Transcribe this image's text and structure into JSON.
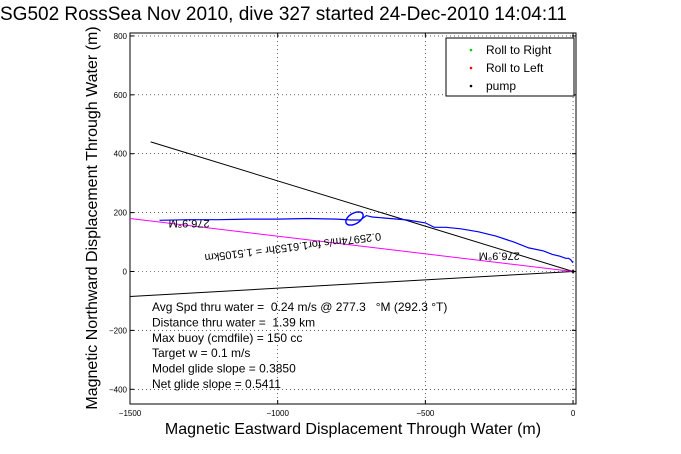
{
  "chart_data": {
    "type": "line",
    "title": "SG502 RossSea Nov 2010, dive 327 started 24-Dec-2010 14:04:11",
    "xlabel": "Magnetic Eastward Displacement Through Water (m)",
    "ylabel": "Magnetic Northward Displacement Through Water (m)",
    "xlim": [
      -1500,
      10
    ],
    "ylim": [
      -450,
      810
    ],
    "xticks": [
      -1500,
      -1000,
      -500,
      0
    ],
    "xtick_labels": [
      "−1500",
      "−1000",
      "−500",
      "0"
    ],
    "yticks": [
      -400,
      -200,
      0,
      200,
      400,
      600,
      800
    ],
    "ytick_labels": [
      "−400",
      "−200",
      "0",
      "200",
      "400",
      "600",
      "800"
    ],
    "grid": true,
    "legend_position": "top-right",
    "legend": [
      {
        "label": "Roll to Right",
        "color": "#00cc00",
        "marker": "."
      },
      {
        "label": "Roll to Left",
        "color": "#ff0000",
        "marker": "."
      },
      {
        "label": "pump",
        "color": "#000000",
        "marker": "."
      }
    ],
    "track": {
      "color": "#0000ff",
      "x": [
        0,
        -8,
        -15,
        -25,
        -45,
        -70,
        -100,
        -150,
        -200,
        -260,
        -320,
        -380,
        -430,
        -470,
        -500,
        -560,
        -620,
        -680,
        -700,
        -720,
        -750,
        -800,
        -900,
        -1000,
        -1100,
        -1200,
        -1300,
        -1400
      ],
      "y": [
        30,
        40,
        45,
        45,
        52,
        58,
        70,
        80,
        100,
        120,
        135,
        145,
        150,
        150,
        165,
        175,
        180,
        185,
        190,
        175,
        175,
        178,
        180,
        178,
        178,
        176,
        176,
        174
      ]
    },
    "loop": {
      "center": [
        -740,
        180
      ],
      "rx": 32,
      "ry": 18
    },
    "lines": [
      {
        "color": "#000000",
        "x": [
          -1430,
          0
        ],
        "y": [
          440,
          0
        ]
      },
      {
        "color": "#000000",
        "x": [
          -1500,
          0
        ],
        "y": [
          -85,
          0
        ]
      },
      {
        "color": "#ff00ff",
        "x": [
          -1500,
          0
        ],
        "y": [
          180,
          0
        ]
      }
    ],
    "rotated_labels": [
      {
        "text": "276.9°M",
        "x": -1300,
        "y": 175,
        "angle": 180
      },
      {
        "text": "276.9°M",
        "x": -250,
        "y": 65,
        "angle": 180
      },
      {
        "text": "0.25974m/s for1.6153hr = 1.5105km",
        "x": -950,
        "y": 95,
        "angle": 173
      }
    ],
    "stats": [
      "Avg Spd thru water =  0.24 m/s @ 277.3   °M (292.3 °T)",
      "Distance thru water =  1.39 km",
      "Max buoy (cmdfile) = 150 cc",
      "Target w = 0.1 m/s",
      "Model glide slope = 0.3850",
      "Net glide slope = 0.5411"
    ]
  }
}
